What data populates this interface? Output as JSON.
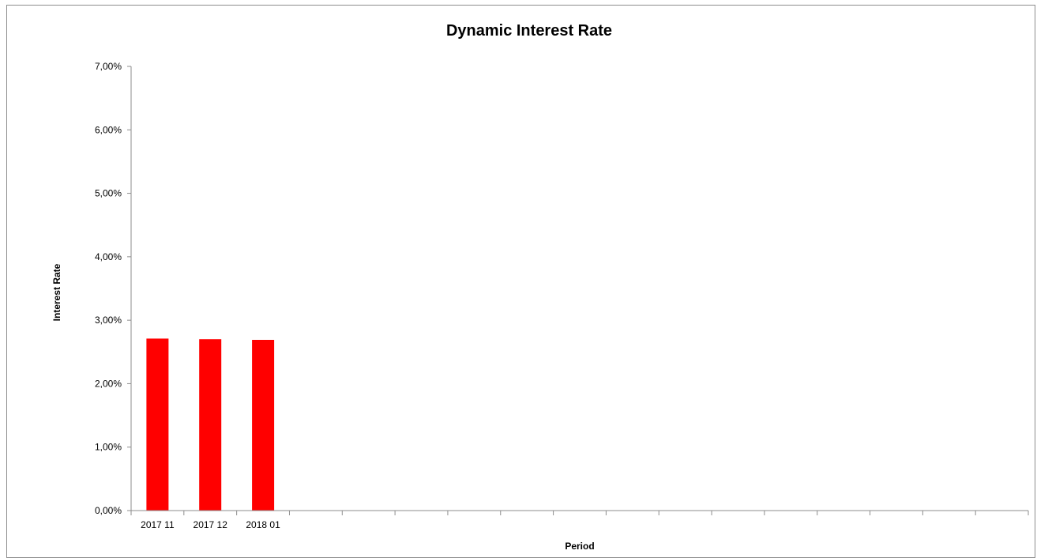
{
  "chart_data": {
    "type": "bar",
    "title": "Dynamic Interest Rate",
    "xlabel": "Period",
    "ylabel": "Interest Rate",
    "categories": [
      "2017 11",
      "2017 12",
      "2018 01",
      "",
      "",
      "",
      "",
      "",
      "",
      "",
      "",
      "",
      "",
      "",
      "",
      "",
      ""
    ],
    "values": [
      0.0271,
      0.027,
      0.0269,
      null,
      null,
      null,
      null,
      null,
      null,
      null,
      null,
      null,
      null,
      null,
      null,
      null,
      null
    ],
    "ylim": [
      0,
      0.07
    ],
    "yticks": [
      0,
      0.01,
      0.02,
      0.03,
      0.04,
      0.05,
      0.06,
      0.07
    ],
    "ytick_labels": [
      "0,00%",
      "1,00%",
      "2,00%",
      "3,00%",
      "4,00%",
      "5,00%",
      "6,00%",
      "7,00%"
    ],
    "grid": false,
    "legend": "none",
    "colors": {
      "bar": "#ff0000",
      "axis": "#8c8c8c"
    }
  }
}
